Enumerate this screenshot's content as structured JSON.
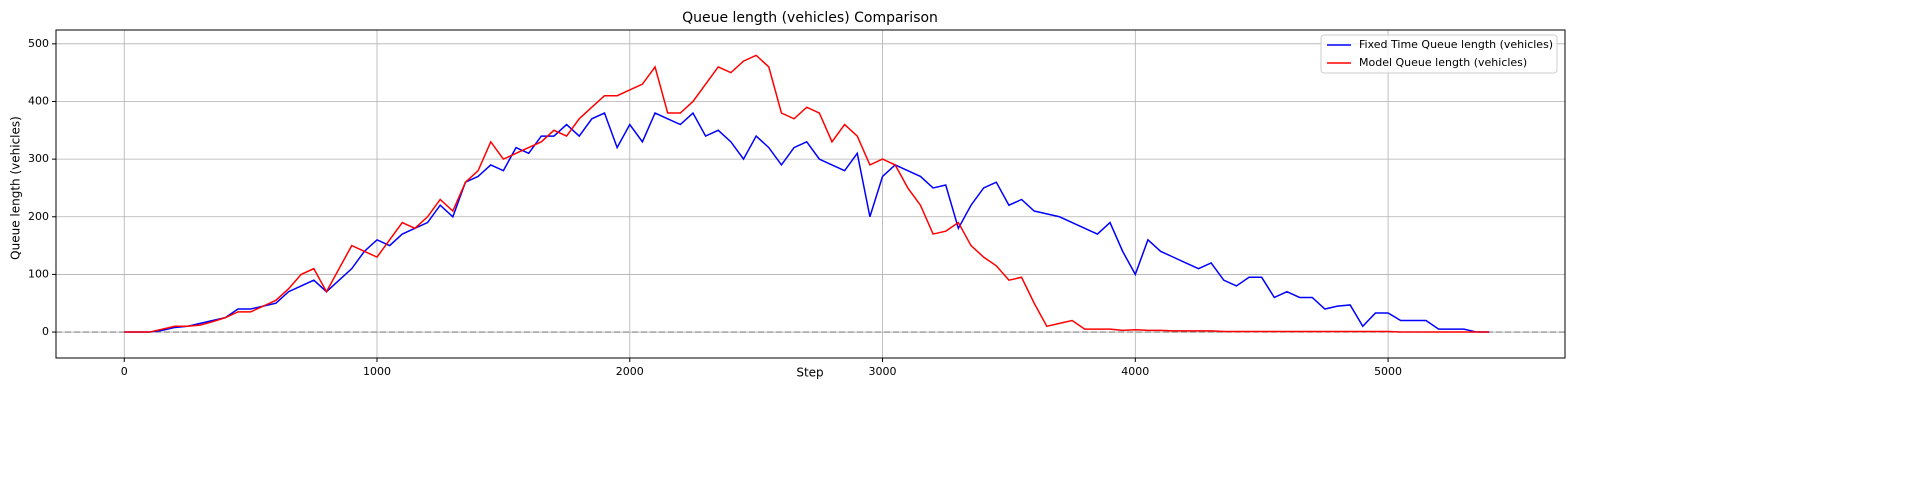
{
  "chart_data": {
    "type": "line",
    "title": "Queue length (vehicles) Comparison",
    "x_label": "Step",
    "y_label": "Queue length (vehicles)",
    "x": [
      0,
      50,
      100,
      150,
      200,
      250,
      300,
      350,
      400,
      450,
      500,
      550,
      600,
      650,
      700,
      750,
      800,
      850,
      900,
      950,
      1000,
      1050,
      1100,
      1150,
      1200,
      1250,
      1300,
      1350,
      1400,
      1450,
      1500,
      1550,
      1600,
      1650,
      1700,
      1750,
      1800,
      1850,
      1900,
      1950,
      2000,
      2050,
      2100,
      2150,
      2200,
      2250,
      2300,
      2350,
      2400,
      2450,
      2500,
      2550,
      2600,
      2650,
      2700,
      2750,
      2800,
      2850,
      2900,
      2950,
      3000,
      3050,
      3100,
      3150,
      3200,
      3250,
      3300,
      3350,
      3400,
      3450,
      3500,
      3550,
      3600,
      3650,
      3700,
      3750,
      3800,
      3850,
      3900,
      3950,
      4000,
      4050,
      4100,
      4150,
      4200,
      4250,
      4300,
      4350,
      4400,
      4450,
      4500,
      4550,
      4600,
      4650,
      4700,
      4750,
      4800,
      4850,
      4900,
      4950,
      5000,
      5050,
      5100,
      5150,
      5200,
      5250,
      5300,
      5350,
      5400
    ],
    "series": [
      {
        "name": "Fixed Time Queue length (vehicles)",
        "color": "#0000ff",
        "values": [
          0,
          0,
          0,
          3,
          8,
          10,
          15,
          20,
          25,
          40,
          40,
          45,
          50,
          70,
          80,
          90,
          70,
          90,
          110,
          140,
          160,
          150,
          170,
          180,
          190,
          220,
          200,
          260,
          270,
          290,
          280,
          320,
          310,
          340,
          340,
          360,
          340,
          370,
          380,
          320,
          360,
          330,
          380,
          370,
          360,
          380,
          340,
          350,
          330,
          300,
          340,
          320,
          290,
          320,
          330,
          300,
          290,
          280,
          310,
          200,
          270,
          290,
          280,
          270,
          250,
          255,
          180,
          220,
          250,
          260,
          220,
          230,
          210,
          205,
          200,
          190,
          180,
          170,
          190,
          140,
          100,
          160,
          140,
          130,
          120,
          110,
          120,
          90,
          80,
          95,
          95,
          60,
          70,
          60,
          60,
          40,
          45,
          47,
          10,
          33,
          33,
          20,
          20,
          20,
          5,
          5,
          5,
          0,
          0
        ]
      },
      {
        "name": "Model Queue length (vehicles)",
        "color": "#ff0000",
        "values": [
          0,
          0,
          0,
          5,
          10,
          10,
          12,
          18,
          25,
          35,
          35,
          45,
          55,
          75,
          100,
          110,
          70,
          110,
          150,
          140,
          130,
          160,
          190,
          180,
          200,
          230,
          210,
          260,
          280,
          330,
          300,
          310,
          320,
          330,
          350,
          340,
          370,
          390,
          410,
          410,
          420,
          430,
          460,
          380,
          380,
          400,
          430,
          460,
          450,
          470,
          480,
          460,
          380,
          370,
          390,
          380,
          330,
          360,
          340,
          290,
          300,
          290,
          250,
          220,
          170,
          175,
          190,
          150,
          130,
          115,
          90,
          95,
          50,
          10,
          15,
          20,
          5,
          5,
          5,
          3,
          4,
          3,
          3,
          2,
          2,
          2,
          2,
          1,
          1,
          1,
          1,
          1,
          1,
          1,
          1,
          1,
          1,
          1,
          1,
          1,
          1,
          0,
          0,
          0,
          0,
          0,
          0,
          0,
          0
        ]
      }
    ],
    "xlim": [
      -270,
      5700
    ],
    "ylim": [
      -45,
      524
    ],
    "xticks": [
      0,
      1000,
      2000,
      3000,
      4000,
      5000
    ],
    "yticks": [
      0,
      100,
      200,
      300,
      400,
      500
    ],
    "axhline": 0,
    "grid": true,
    "legend": "upper right"
  }
}
